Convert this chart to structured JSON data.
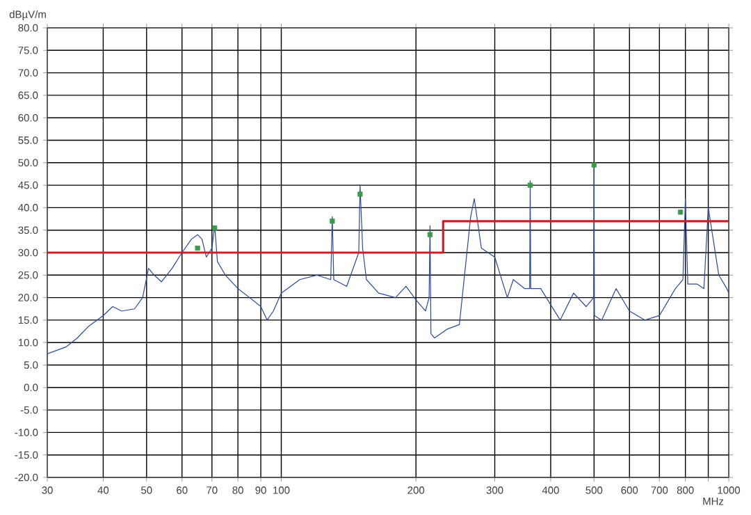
{
  "chart_data": {
    "type": "line",
    "xlabel": "MHz",
    "ylabel": "dBµV/m",
    "log": "x",
    "grid": true,
    "xlim": [
      30,
      1000
    ],
    "ylim": [
      -20,
      80
    ],
    "xticks": [
      30,
      40,
      50,
      60,
      70,
      80,
      90,
      100,
      200,
      300,
      400,
      500,
      600,
      700,
      800,
      {
        "value": 900,
        "label": null
      },
      1000
    ],
    "yticks": [
      {
        "value": -20,
        "label": "-20.0"
      },
      {
        "value": -15,
        "label": "-15.0"
      },
      {
        "value": -10,
        "label": "-10.0"
      },
      {
        "value": -5,
        "label": "-5.0"
      },
      {
        "value": 0,
        "label": "0.0"
      },
      {
        "value": 5,
        "label": "5.0"
      },
      {
        "value": 10,
        "label": "10.0"
      },
      {
        "value": 15,
        "label": "15.0"
      },
      {
        "value": 20,
        "label": "20.0"
      },
      {
        "value": 25,
        "label": "25.0"
      },
      {
        "value": 30,
        "label": "30.0"
      },
      {
        "value": 35,
        "label": "35.0"
      },
      {
        "value": 40,
        "label": "40.0"
      },
      {
        "value": 45,
        "label": "45.0"
      },
      {
        "value": 50,
        "label": "50.0"
      },
      {
        "value": 55,
        "label": "55.0"
      },
      {
        "value": 60,
        "label": "60.0"
      },
      {
        "value": 65,
        "label": "65.0"
      },
      {
        "value": 70,
        "label": "70.0"
      },
      {
        "value": 75,
        "label": "75.0"
      },
      {
        "value": 80,
        "label": "80.0"
      }
    ],
    "series": [
      {
        "color": "#2a4a9a",
        "x": [
          30,
          33,
          35,
          37,
          40,
          42,
          44,
          47,
          49,
          50.5,
          52,
          54,
          57,
          60,
          63,
          65,
          66.5,
          68,
          70,
          71,
          72,
          75,
          80,
          85,
          90,
          93,
          96,
          100,
          110,
          120,
          129,
          130,
          131,
          140,
          149,
          150,
          152,
          155,
          165,
          180,
          190,
          200,
          210,
          214,
          215,
          216,
          220,
          235,
          250,
          265,
          270,
          280,
          300,
          320,
          330,
          350,
          359,
          360,
          361,
          380,
          420,
          450,
          480,
          499,
          500,
          501,
          520,
          560,
          600,
          650,
          700,
          760,
          790,
          800,
          810,
          850,
          880,
          900,
          950,
          990,
          1000
        ],
        "values": [
          7.5,
          9,
          11,
          13.5,
          16,
          18,
          17,
          17.5,
          20,
          26.5,
          25,
          23.5,
          26.5,
          30,
          33,
          34,
          33,
          29,
          31,
          36,
          28,
          25,
          22,
          20,
          18,
          15,
          17,
          21,
          24,
          25,
          24,
          38,
          24,
          22.5,
          30,
          45,
          31,
          24,
          21,
          20,
          22.5,
          19.5,
          17,
          20,
          36,
          12,
          11,
          13,
          14,
          38,
          42,
          31,
          29,
          20,
          24,
          22,
          22,
          46,
          22,
          22,
          15,
          21,
          18,
          20,
          49,
          16,
          15,
          22,
          17,
          15,
          16,
          22,
          24,
          42,
          23,
          23,
          22,
          40,
          25,
          22,
          21
        ]
      },
      {
        "color": "#c8202a",
        "x": [
          30,
          230,
          230,
          1000
        ],
        "values": [
          30,
          30,
          37,
          37
        ]
      },
      {
        "type": "scatter",
        "marker": "square",
        "color": "#3a9a4a",
        "x": [
          65,
          71,
          130,
          150,
          215,
          360,
          500,
          780
        ],
        "values": [
          31,
          35.5,
          37,
          43,
          34,
          45,
          49.5,
          39
        ]
      }
    ]
  }
}
